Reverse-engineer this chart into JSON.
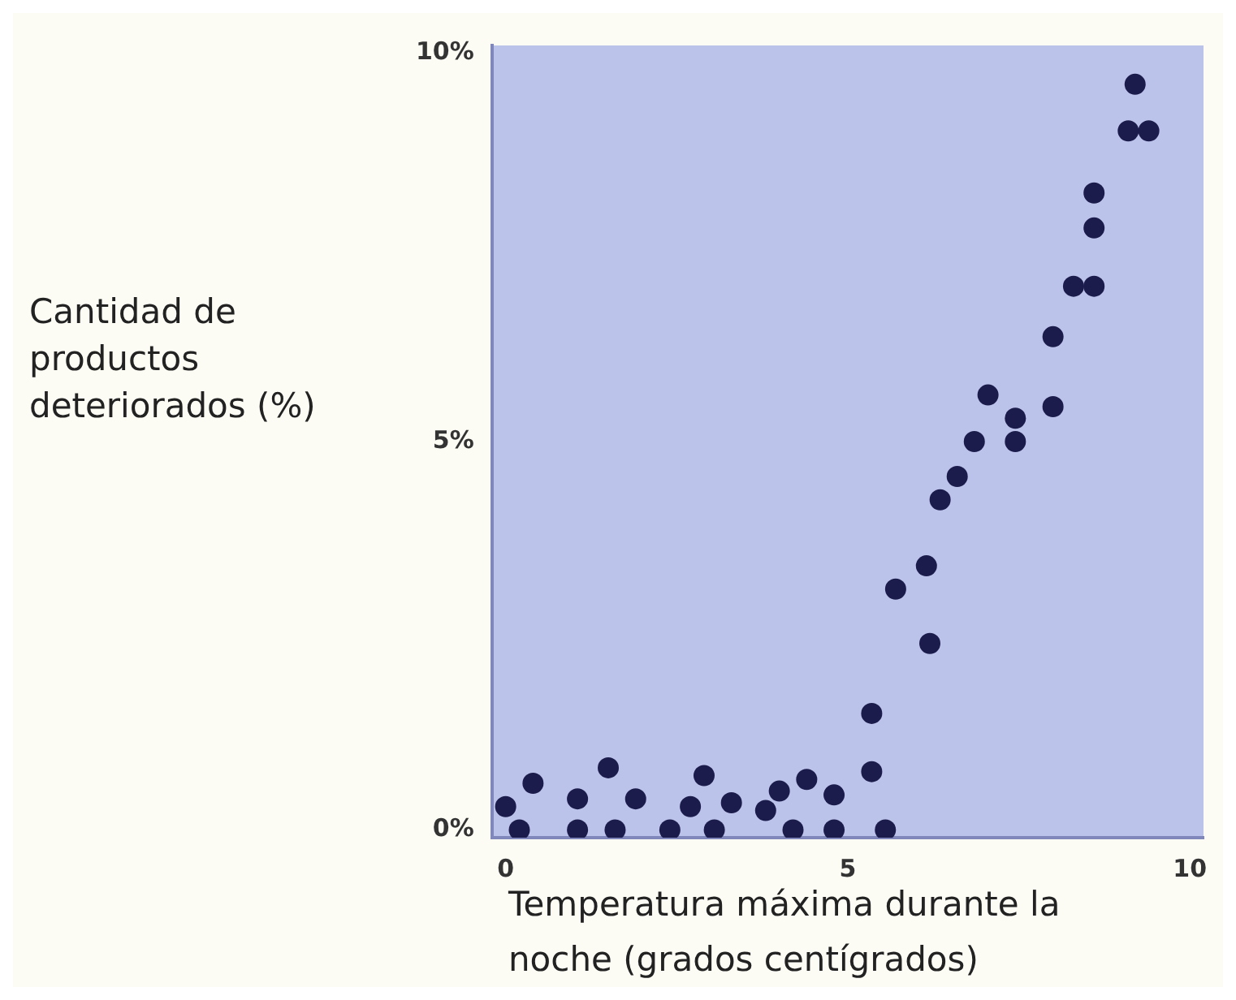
{
  "chart_data": {
    "type": "scatter",
    "xlabel": "Temperatura máxima durante la noche (grados centígrados)",
    "ylabel": "Cantidad de productos deteriorados (%)",
    "x": [
      0,
      0.2,
      0.4,
      1.05,
      1.05,
      1.5,
      1.6,
      1.9,
      2.4,
      2.7,
      2.9,
      3.05,
      3.3,
      3.8,
      4.0,
      4.2,
      4.4,
      4.8,
      4.8,
      5.35,
      5.35,
      5.55,
      5.7,
      6.15,
      6.2,
      6.35,
      6.6,
      6.85,
      7.05,
      7.45,
      7.45,
      8.0,
      8.0,
      8.3,
      8.6,
      8.6,
      8.6,
      9.1,
      9.4,
      9.2
    ],
    "series": [
      {
        "color": "#1c1c4c",
        "values": [
          0.3,
          0,
          0.6,
          0.4,
          0,
          0.8,
          0,
          0.4,
          0,
          0.3,
          0.7,
          0,
          0.35,
          0.25,
          0.5,
          0,
          0.65,
          0.45,
          0,
          0.75,
          1.5,
          0,
          3.1,
          3.4,
          2.4,
          4.25,
          4.55,
          5.0,
          5.6,
          5.0,
          5.3,
          5.45,
          6.35,
          7.0,
          7.0,
          7.75,
          8.2,
          9.0,
          9.0,
          9.6
        ]
      }
    ],
    "xlim": [
      -0.2,
      10.2
    ],
    "xticks": [
      0,
      5,
      10
    ],
    "ylim": [
      -0.1,
      10.1
    ],
    "yticks": [
      {
        "value": 0,
        "label": "0%"
      },
      {
        "value": 5,
        "label": "5%"
      },
      {
        "value": 10,
        "label": "10%"
      }
    ],
    "grid": false,
    "legend": false,
    "marker": "circle"
  }
}
